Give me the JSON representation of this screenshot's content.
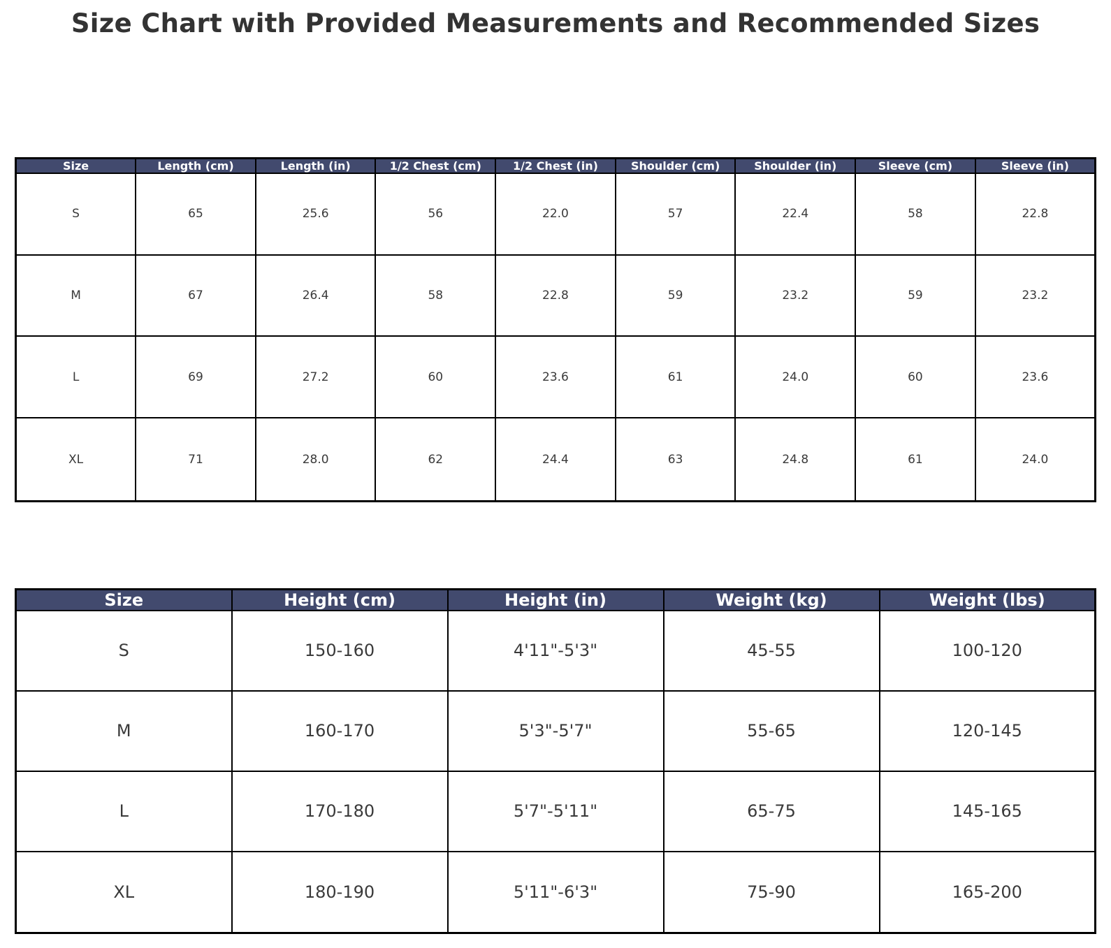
{
  "page": {
    "title": "Size Chart with Provided Measurements and Recommended Sizes"
  },
  "colors": {
    "header_bg": "#424a6e",
    "header_text": "#ffffff",
    "cell_text": "#3a3a3a",
    "border": "#000000",
    "title_text": "#333333",
    "background": "#ffffff"
  },
  "chart_data": [
    {
      "type": "table",
      "name": "provided-measurements",
      "columns": [
        "Size",
        "Length (cm)",
        "Length (in)",
        "1/2 Chest (cm)",
        "1/2 Chest (in)",
        "Shoulder (cm)",
        "Shoulder (in)",
        "Sleeve (cm)",
        "Sleeve (in)"
      ],
      "rows": [
        [
          "S",
          "65",
          "25.6",
          "56",
          "22.0",
          "57",
          "22.4",
          "58",
          "22.8"
        ],
        [
          "M",
          "67",
          "26.4",
          "58",
          "22.8",
          "59",
          "23.2",
          "59",
          "23.2"
        ],
        [
          "L",
          "69",
          "27.2",
          "60",
          "23.6",
          "61",
          "24.0",
          "60",
          "23.6"
        ],
        [
          "XL",
          "71",
          "28.0",
          "62",
          "24.4",
          "63",
          "24.8",
          "61",
          "24.0"
        ]
      ]
    },
    {
      "type": "table",
      "name": "recommended-sizes",
      "columns": [
        "Size",
        "Height (cm)",
        "Height (in)",
        "Weight (kg)",
        "Weight (lbs)"
      ],
      "rows": [
        [
          "S",
          "150-160",
          "4'11\"-5'3\"",
          "45-55",
          "100-120"
        ],
        [
          "M",
          "160-170",
          "5'3\"-5'7\"",
          "55-65",
          "120-145"
        ],
        [
          "L",
          "170-180",
          "5'7\"-5'11\"",
          "65-75",
          "145-165"
        ],
        [
          "XL",
          "180-190",
          "5'11\"-6'3\"",
          "75-90",
          "165-200"
        ]
      ]
    }
  ]
}
